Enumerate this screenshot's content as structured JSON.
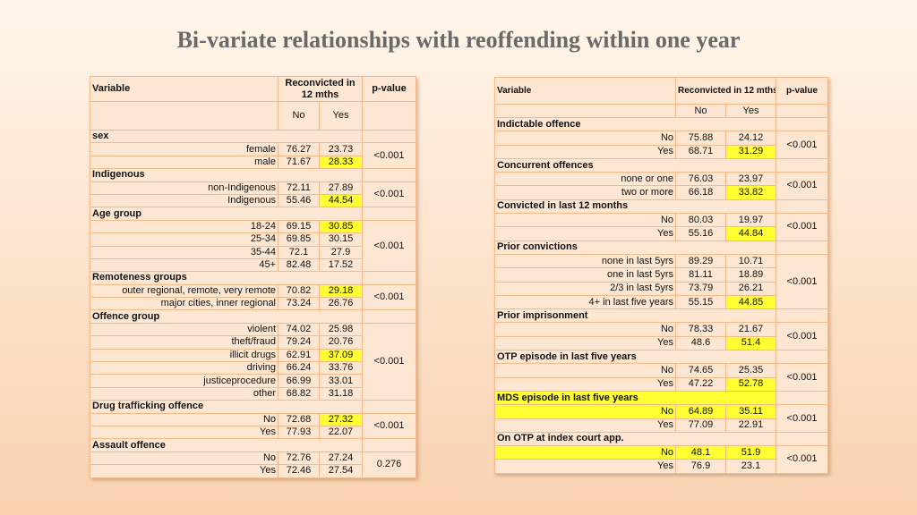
{
  "title": "Bi-variate relationships with reoffending within one year",
  "colors": {
    "highlight": "#ffff33",
    "border": "#f6b98a",
    "table_bg": "#fde7d2",
    "title": "#6a6a6a"
  },
  "left_table": {
    "headers": {
      "variable": "Variable",
      "reconvicted": "Reconvicted in 12 mths",
      "pvalue": "p-value",
      "no": "No",
      "yes": "Yes"
    },
    "groups": [
      {
        "name": "sex",
        "pvalue": "<0.001",
        "rows": [
          {
            "label": "female",
            "no": "76.27",
            "yes": "23.73",
            "highlight_yes": false,
            "highlight_label": false
          },
          {
            "label": "male",
            "no": "71.67",
            "yes": "28.33",
            "highlight_yes": true,
            "highlight_label": false
          }
        ]
      },
      {
        "name": "Indigenous",
        "pvalue": "<0.001",
        "rows": [
          {
            "label": "non-Indigenous",
            "no": "72.11",
            "yes": "27.89",
            "highlight_yes": false,
            "highlight_label": false
          },
          {
            "label": "Indigenous",
            "no": "55.46",
            "yes": "44.54",
            "highlight_yes": true,
            "highlight_label": false
          }
        ]
      },
      {
        "name": "Age group",
        "pvalue": "<0.001",
        "rows": [
          {
            "label": "18-24",
            "no": "69.15",
            "yes": "30.85",
            "highlight_yes": true,
            "highlight_label": false
          },
          {
            "label": "25-34",
            "no": "69.85",
            "yes": "30.15",
            "highlight_yes": false,
            "highlight_label": false
          },
          {
            "label": "35-44",
            "no": "72.1",
            "yes": "27.9",
            "highlight_yes": false,
            "highlight_label": false
          },
          {
            "label": "45+",
            "no": "82.48",
            "yes": "17.52",
            "highlight_yes": false,
            "highlight_label": false
          }
        ]
      },
      {
        "name": "Remoteness groups",
        "pvalue": "<0.001",
        "rows": [
          {
            "label": "outer regional, remote, very remote",
            "no": "70.82",
            "yes": "29.18",
            "highlight_yes": true,
            "highlight_label": false
          },
          {
            "label": "major cities, inner regional",
            "no": "73.24",
            "yes": "26.76",
            "highlight_yes": false,
            "highlight_label": false
          }
        ]
      },
      {
        "name": "Offence group",
        "pvalue": "<0.001",
        "rows": [
          {
            "label": "violent",
            "no": "74.02",
            "yes": "25.98",
            "highlight_yes": false,
            "highlight_label": false
          },
          {
            "label": "theft/fraud",
            "no": "79.24",
            "yes": "20.76",
            "highlight_yes": false,
            "highlight_label": false
          },
          {
            "label": "illicit drugs",
            "no": "62.91",
            "yes": "37.09",
            "highlight_yes": true,
            "highlight_label": false
          },
          {
            "label": "driving",
            "no": "66.24",
            "yes": "33.76",
            "highlight_yes": false,
            "highlight_label": false
          },
          {
            "label": "justiceprocedure",
            "no": "66.99",
            "yes": "33.01",
            "highlight_yes": false,
            "highlight_label": false
          },
          {
            "label": "other",
            "no": "68.82",
            "yes": "31.18",
            "highlight_yes": false,
            "highlight_label": false
          }
        ]
      },
      {
        "name": "Drug trafficking offence",
        "pvalue": "<0.001",
        "rows": [
          {
            "label": "No",
            "no": "72.68",
            "yes": "27.32",
            "highlight_yes": true,
            "highlight_label": false
          },
          {
            "label": "Yes",
            "no": "77.93",
            "yes": "22.07",
            "highlight_yes": false,
            "highlight_label": false
          }
        ]
      },
      {
        "name": "Assault offence",
        "pvalue": "0.276",
        "rows": [
          {
            "label": "No",
            "no": "72.76",
            "yes": "27.24",
            "highlight_yes": false,
            "highlight_label": false
          },
          {
            "label": "Yes",
            "no": "72.46",
            "yes": "27.54",
            "highlight_yes": false,
            "highlight_label": false
          }
        ]
      }
    ]
  },
  "right_table": {
    "headers": {
      "variable": "Variable",
      "reconvicted": "Reconvicted in 12 mths",
      "pvalue": "p-value",
      "no": "No",
      "yes": "Yes"
    },
    "groups": [
      {
        "name": "Indictable offence",
        "pvalue": "<0.001",
        "rows": [
          {
            "label": "No",
            "no": "75.88",
            "yes": "24.12",
            "highlight_yes": false,
            "highlight_label": false
          },
          {
            "label": "Yes",
            "no": "68.71",
            "yes": "31.29",
            "highlight_yes": true,
            "highlight_label": false
          }
        ]
      },
      {
        "name": "Concurrent offences",
        "pvalue": "<0.001",
        "rows": [
          {
            "label": "none or one",
            "no": "76.03",
            "yes": "23.97",
            "highlight_yes": false,
            "highlight_label": false
          },
          {
            "label": "two or more",
            "no": "66.18",
            "yes": "33.82",
            "highlight_yes": true,
            "highlight_label": false
          }
        ]
      },
      {
        "name": "Convicted in last 12 months",
        "pvalue": "<0.001",
        "rows": [
          {
            "label": "No",
            "no": "80.03",
            "yes": "19.97",
            "highlight_yes": false,
            "highlight_label": false
          },
          {
            "label": "Yes",
            "no": "55.16",
            "yes": "44.84",
            "highlight_yes": true,
            "highlight_label": false
          }
        ]
      },
      {
        "name": "Prior convictions",
        "pvalue": "<0.001",
        "rows": [
          {
            "label": "none in last 5yrs",
            "no": "89.29",
            "yes": "10.71",
            "highlight_yes": false,
            "highlight_label": false
          },
          {
            "label": "one in last 5yrs",
            "no": "81.11",
            "yes": "18.89",
            "highlight_yes": false,
            "highlight_label": false
          },
          {
            "label": "2/3 in last 5yrs",
            "no": "73.79",
            "yes": "26.21",
            "highlight_yes": false,
            "highlight_label": false
          },
          {
            "label": "4+ in last five years",
            "no": "55.15",
            "yes": "44.85",
            "highlight_yes": true,
            "highlight_label": false
          }
        ]
      },
      {
        "name": "Prior imprisonment",
        "pvalue": "<0.001",
        "rows": [
          {
            "label": "No",
            "no": "78.33",
            "yes": "21.67",
            "highlight_yes": false,
            "highlight_label": false
          },
          {
            "label": "Yes",
            "no": "48.6",
            "yes": "51.4",
            "highlight_yes": true,
            "highlight_label": false
          }
        ]
      },
      {
        "name": "OTP episode in last five years",
        "pvalue": "<0.001",
        "rows": [
          {
            "label": "No",
            "no": "74.65",
            "yes": "25.35",
            "highlight_yes": false,
            "highlight_label": false
          },
          {
            "label": "Yes",
            "no": "47.22",
            "yes": "52.78",
            "highlight_yes": true,
            "highlight_label": false
          }
        ]
      },
      {
        "name": "MDS episode in last five years",
        "pvalue": "<0.001",
        "highlight_name": true,
        "rows": [
          {
            "label": "No",
            "no": "64.89",
            "yes": "35.11",
            "highlight_yes": true,
            "highlight_label": true
          },
          {
            "label": "Yes",
            "no": "77.09",
            "yes": "22.91",
            "highlight_yes": false,
            "highlight_label": false
          }
        ]
      },
      {
        "name": "On OTP at index court app.",
        "pvalue": "<0.001",
        "rows": [
          {
            "label": "No",
            "no": "48.1",
            "yes": "51.9",
            "highlight_yes": true,
            "highlight_label": true
          },
          {
            "label": "Yes",
            "no": "76.9",
            "yes": "23.1",
            "highlight_yes": false,
            "highlight_label": false
          }
        ]
      }
    ]
  }
}
